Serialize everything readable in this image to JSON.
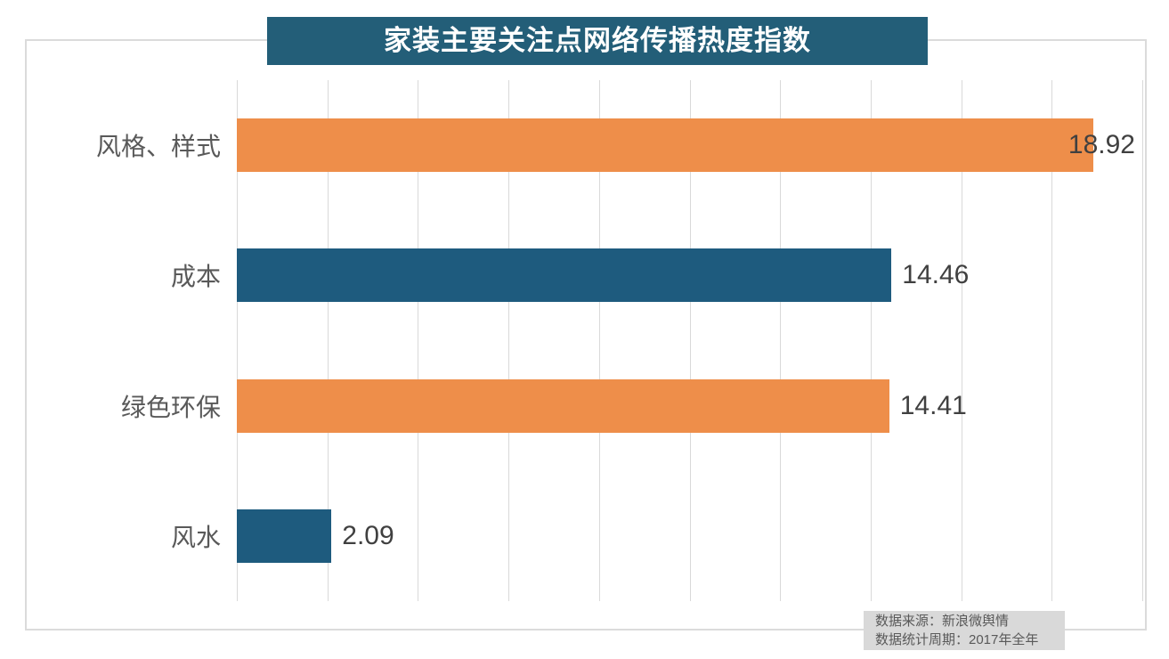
{
  "title": "家装主要关注点网络传播热度指数",
  "source_box": {
    "line1": "数据来源：新浪微舆情",
    "line2": "数据统计周期：2017年全年"
  },
  "colors": {
    "title_bg": "#235E78",
    "bar_orange": "#EE8E4A",
    "bar_teal": "#1E5B7E",
    "grid": "#D9D9D9",
    "category_text": "#595959",
    "value_text": "#404040",
    "source_bg": "#D9D9D9",
    "frame_border": "#DBDBDB"
  },
  "chart_data": {
    "type": "bar",
    "orientation": "horizontal",
    "title": "家装主要关注点网络传播热度指数",
    "xlabel": "",
    "ylabel": "",
    "xlim": [
      0,
      20
    ],
    "grid": true,
    "grid_step": 2,
    "legend_position": "none",
    "categories": [
      "风格、样式",
      "成本",
      "绿色环保",
      "风水"
    ],
    "values": [
      18.92,
      14.46,
      14.41,
      2.09
    ],
    "bars": [
      {
        "label": "风格、样式",
        "value": 18.92,
        "display": "18.92",
        "color": "#EE8E4A"
      },
      {
        "label": "成本",
        "value": 14.46,
        "display": "14.46",
        "color": "#1E5B7E"
      },
      {
        "label": "绿色环保",
        "value": 14.41,
        "display": "14.41",
        "color": "#EE8E4A"
      },
      {
        "label": "风水",
        "value": 2.09,
        "display": "2.09",
        "color": "#1E5B7E"
      }
    ]
  }
}
